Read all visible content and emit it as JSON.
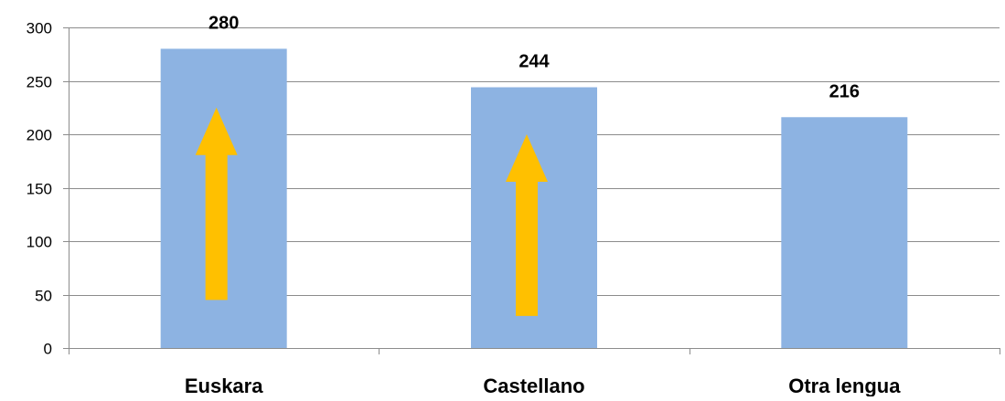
{
  "chart_data": {
    "type": "bar",
    "title": "",
    "xlabel": "",
    "ylabel": "",
    "categories": [
      "Euskara",
      "Castellano",
      "Otra lengua"
    ],
    "values": [
      280,
      244,
      216
    ],
    "data_labels": [
      "280",
      "244",
      "216"
    ],
    "ylim": [
      0,
      300
    ],
    "yticks": [
      0,
      50,
      100,
      150,
      200,
      250,
      300
    ],
    "ytick_labels": [
      "0",
      "50",
      "100",
      "150",
      "200",
      "250",
      "300"
    ],
    "grid": true,
    "legend": "none",
    "colors": {
      "bar": "#8db3e2",
      "arrow": "#ffc000",
      "grid": "#8c8c8c",
      "text": "#000000"
    },
    "annotations": [
      {
        "type": "up-arrow",
        "category": "Euskara",
        "from": 45,
        "to": 225
      },
      {
        "type": "up-arrow",
        "category": "Castellano",
        "from": 30,
        "to": 200
      }
    ]
  }
}
